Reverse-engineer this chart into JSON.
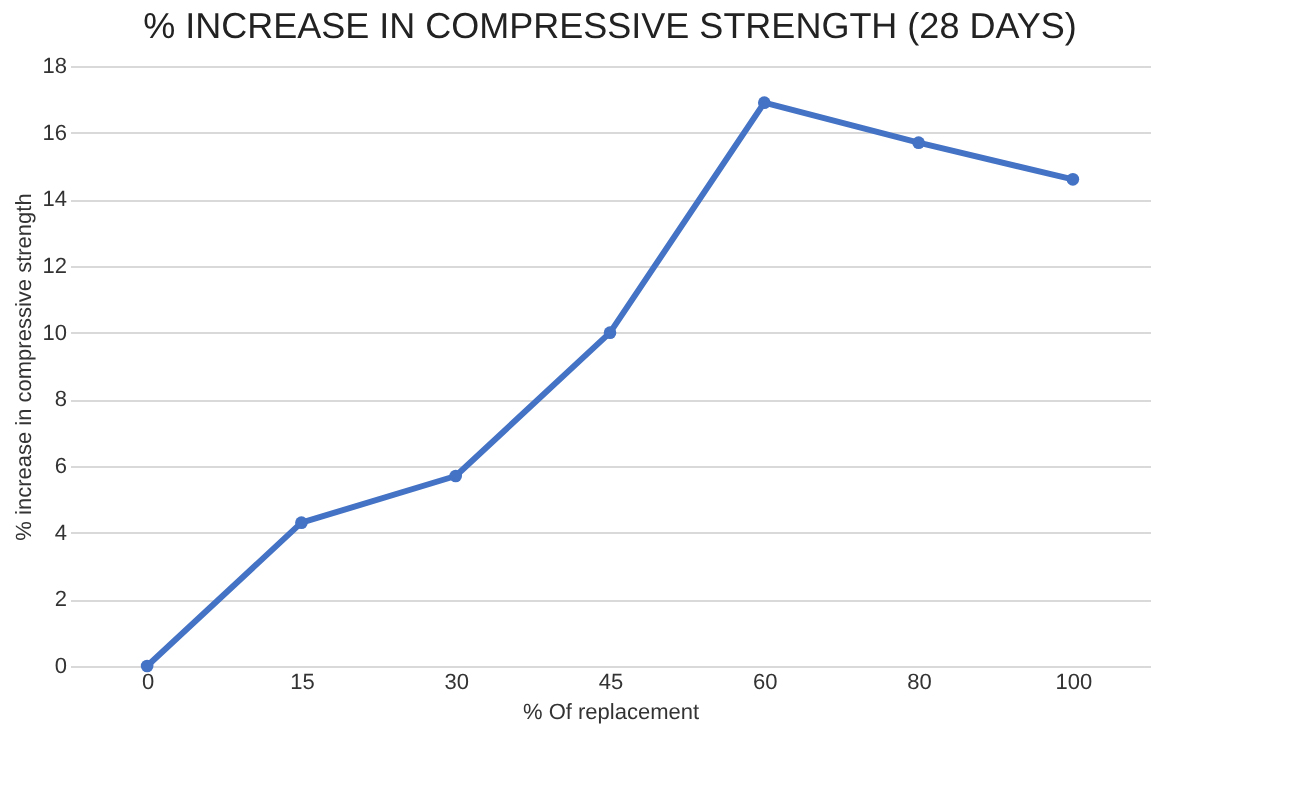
{
  "chart_data": {
    "type": "line",
    "title": "% INCREASE IN COMPRESSIVE STRENGTH (28 DAYS)",
    "xlabel": "% Of replacement",
    "ylabel": "% increase in compressive strength",
    "categories": [
      "0",
      "15",
      "30",
      "45",
      "60",
      "80",
      "100"
    ],
    "series": [
      {
        "color": "#4472c4",
        "values": [
          0,
          4.3,
          5.7,
          10.0,
          16.9,
          15.7,
          14.6
        ]
      }
    ],
    "ylim": [
      0,
      18
    ],
    "yticks": [
      0,
      2,
      4,
      6,
      8,
      10,
      12,
      14,
      16,
      18
    ],
    "grid": "y",
    "marker": "circle",
    "line_style": "solid"
  }
}
